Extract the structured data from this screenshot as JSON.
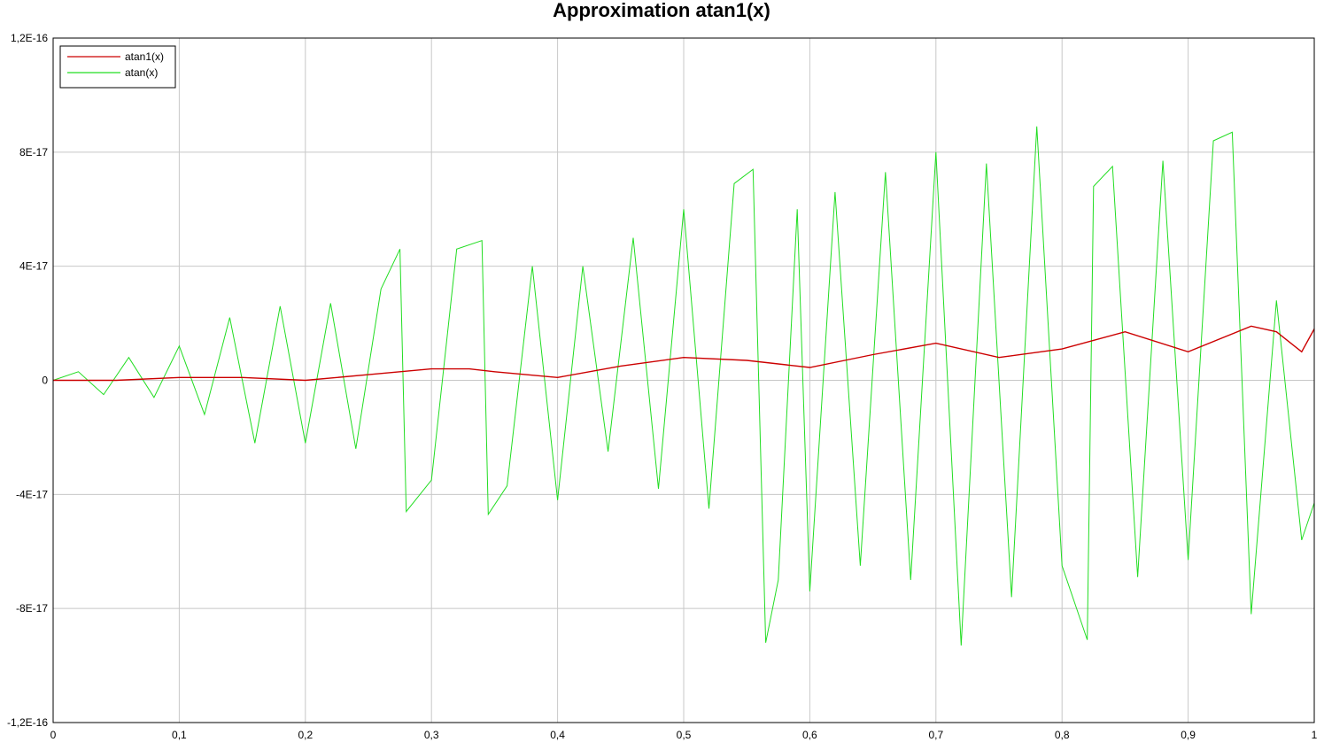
{
  "chart_data": {
    "type": "line",
    "title": "Approximation atan1(x)",
    "xlabel": "",
    "ylabel": "",
    "xlim": [
      0,
      1
    ],
    "ylim": [
      -1.2e-16,
      1.2e-16
    ],
    "grid": true,
    "legend_position": "top-left",
    "x_ticks": [
      {
        "value": 0,
        "label": "0"
      },
      {
        "value": 0.1,
        "label": "0,1"
      },
      {
        "value": 0.2,
        "label": "0,2"
      },
      {
        "value": 0.3,
        "label": "0,3"
      },
      {
        "value": 0.4,
        "label": "0,4"
      },
      {
        "value": 0.5,
        "label": "0,5"
      },
      {
        "value": 0.6,
        "label": "0,6"
      },
      {
        "value": 0.7,
        "label": "0,7"
      },
      {
        "value": 0.8,
        "label": "0,8"
      },
      {
        "value": 0.9,
        "label": "0,9"
      },
      {
        "value": 1,
        "label": "1"
      }
    ],
    "y_ticks": [
      {
        "value": 1.2e-16,
        "label": "1,2E-16"
      },
      {
        "value": 8e-17,
        "label": "8E-17"
      },
      {
        "value": 4e-17,
        "label": "4E-17"
      },
      {
        "value": 0,
        "label": "0"
      },
      {
        "value": -4e-17,
        "label": "-4E-17"
      },
      {
        "value": -8e-17,
        "label": "-8E-17"
      },
      {
        "value": -1.2e-16,
        "label": "-1,2E-16"
      }
    ],
    "series": [
      {
        "name": "atan1(x)",
        "color": "#cc0000",
        "x": [
          0,
          0.05,
          0.1,
          0.15,
          0.2,
          0.25,
          0.3,
          0.33,
          0.35,
          0.4,
          0.45,
          0.5,
          0.55,
          0.6,
          0.65,
          0.7,
          0.75,
          0.8,
          0.85,
          0.9,
          0.95,
          0.97,
          0.99,
          1.0
        ],
        "y": [
          0,
          0,
          1e-18,
          1e-18,
          0,
          2e-18,
          4e-18,
          4e-18,
          3e-18,
          1e-18,
          5e-18,
          8e-18,
          7e-18,
          4.5e-18,
          9e-18,
          1.3e-17,
          8e-18,
          1.1e-17,
          1.7e-17,
          1e-17,
          1.9e-17,
          1.7e-17,
          1e-17,
          1.8e-17
        ]
      },
      {
        "name": "atan(x)",
        "color": "#22dd22",
        "x": [
          0,
          0.02,
          0.04,
          0.06,
          0.08,
          0.1,
          0.12,
          0.14,
          0.16,
          0.18,
          0.2,
          0.22,
          0.24,
          0.26,
          0.275,
          0.28,
          0.3,
          0.32,
          0.34,
          0.345,
          0.36,
          0.38,
          0.4,
          0.42,
          0.44,
          0.46,
          0.48,
          0.5,
          0.52,
          0.54,
          0.555,
          0.565,
          0.575,
          0.59,
          0.6,
          0.62,
          0.64,
          0.66,
          0.68,
          0.7,
          0.72,
          0.74,
          0.76,
          0.78,
          0.8,
          0.82,
          0.825,
          0.84,
          0.86,
          0.88,
          0.9,
          0.92,
          0.935,
          0.95,
          0.97,
          0.99,
          1.0
        ],
        "y": [
          0,
          3e-18,
          -5e-18,
          8e-18,
          -6e-18,
          1.2e-17,
          -1.2e-17,
          2.2e-17,
          -2.2e-17,
          2.6e-17,
          -2.2e-17,
          2.7e-17,
          -2.4e-17,
          3.2e-17,
          4.6e-17,
          -4.6e-17,
          -3.5e-17,
          4.6e-17,
          4.9e-17,
          -4.7e-17,
          -3.7e-17,
          4e-17,
          -4.2e-17,
          4e-17,
          -2.5e-17,
          5e-17,
          -3.8e-17,
          6e-17,
          -4.5e-17,
          6.9e-17,
          7.4e-17,
          -9.2e-17,
          -7e-17,
          6e-17,
          -7.4e-17,
          6.6e-17,
          -6.5e-17,
          7.3e-17,
          -7e-17,
          8e-17,
          -9.3e-17,
          7.6e-17,
          -7.6e-17,
          8.9e-17,
          -6.5e-17,
          -9.1e-17,
          6.8e-17,
          7.5e-17,
          -6.9e-17,
          7.7e-17,
          -6.3e-17,
          8.4e-17,
          8.7e-17,
          -8.2e-17,
          2.8e-17,
          -5.6e-17,
          -4.3e-17
        ]
      }
    ]
  }
}
